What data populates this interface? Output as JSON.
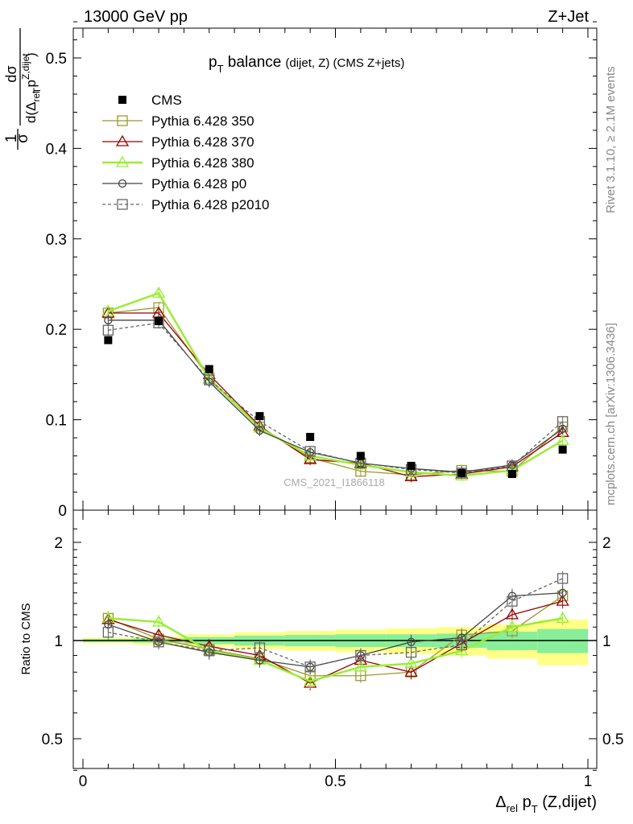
{
  "header": {
    "left": "13000 GeV pp",
    "right": "Z+Jet"
  },
  "side_labels": {
    "rivet": "Rivet 3.1.10, ≥ 2.1M events",
    "mcplots": "mcplots.cern.ch [arXiv:1306.3436]"
  },
  "watermark": "CMS_2021_I1866118",
  "chart_data": [
    {
      "type": "line",
      "title": {
        "main": "p",
        "sub": "T",
        "rest": " balance",
        "small": "(dijet, Z)",
        "tail": " (CMS Z+jets)"
      },
      "ylabel": {
        "lead": "1",
        "sigma": "σ",
        "num": "dσ",
        "den": "d(Δ",
        "den_sub": "rel",
        "den_p": " p",
        "den_sup": "Z,dijet",
        "den_psub": "T",
        "den_close": ")"
      },
      "xlim": [
        0,
        1
      ],
      "ylim": [
        0,
        0.55
      ],
      "yticks": [
        0,
        0.1,
        0.2,
        0.3,
        0.4,
        0.5
      ],
      "ytick_labels": [
        "0",
        "0.1",
        "0.2",
        "0.3",
        "0.4",
        "0.5"
      ],
      "x": [
        0.05,
        0.15,
        0.25,
        0.35,
        0.45,
        0.55,
        0.65,
        0.75,
        0.85,
        0.95
      ],
      "legend_position": "top-left",
      "series": [
        {
          "name": "CMS",
          "color": "#000000",
          "marker": "filled-square",
          "values": [
            0.188,
            0.209,
            0.156,
            0.104,
            0.081,
            0.06,
            0.049,
            0.041,
            0.04,
            0.067
          ]
        },
        {
          "name": "Pythia 6.428 350",
          "color": "#999933",
          "marker": "open-square",
          "values": [
            0.218,
            0.224,
            0.146,
            0.092,
            0.058,
            0.043,
            0.039,
            0.044,
            0.043,
            0.092
          ]
        },
        {
          "name": "Pythia 6.428 370",
          "color": "#990000",
          "marker": "open-triangle",
          "values": [
            0.218,
            0.218,
            0.15,
            0.093,
            0.056,
            0.052,
            0.037,
            0.04,
            0.048,
            0.086
          ]
        },
        {
          "name": "Pythia 6.428 380",
          "color": "#99ee33",
          "marker": "open-triangle",
          "values": [
            0.22,
            0.24,
            0.145,
            0.091,
            0.06,
            0.05,
            0.042,
            0.038,
            0.044,
            0.077
          ]
        },
        {
          "name": "Pythia 6.428 p0",
          "color": "#444444",
          "marker": "open-circle",
          "values": [
            0.21,
            0.21,
            0.142,
            0.088,
            0.064,
            0.052,
            0.046,
            0.042,
            0.05,
            0.09
          ]
        },
        {
          "name": "Pythia 6.428 p2010",
          "color": "#666666",
          "marker": "open-square",
          "dashed": true,
          "values": [
            0.199,
            0.207,
            0.144,
            0.098,
            0.065,
            0.052,
            0.045,
            0.041,
            0.049,
            0.098
          ]
        }
      ]
    },
    {
      "type": "line",
      "ylabel": "Ratio to CMS",
      "xlabel": {
        "delta": "Δ",
        "sub": "rel",
        "p": " p",
        "psub": "T",
        "rest": " (Z,dijet)"
      },
      "xlim": [
        0,
        1
      ],
      "ylim": [
        0.35,
        2.3
      ],
      "yticks": [
        0.5,
        1,
        2
      ],
      "ytick_labels": [
        "0.5",
        "1",
        "2"
      ],
      "xticks": [
        0,
        0.5,
        1
      ],
      "xtick_labels": [
        "0",
        "0.5",
        "1"
      ],
      "x": [
        0.05,
        0.15,
        0.25,
        0.35,
        0.45,
        0.55,
        0.65,
        0.75,
        0.85,
        0.95
      ],
      "bins": [
        0,
        0.1,
        0.2,
        0.3,
        0.4,
        0.5,
        0.6,
        0.7,
        0.8,
        0.9,
        1.0
      ],
      "band_stat": [
        0.01,
        0.015,
        0.025,
        0.035,
        0.04,
        0.045,
        0.045,
        0.05,
        0.065,
        0.085
      ],
      "band_total": [
        0.02,
        0.03,
        0.045,
        0.06,
        0.07,
        0.08,
        0.09,
        0.1,
        0.12,
        0.16
      ],
      "series": [
        {
          "name": "Pythia 6.428 350",
          "color": "#999933",
          "marker": "open-square",
          "values": [
            1.17,
            1.01,
            0.94,
            0.88,
            0.78,
            0.78,
            0.8,
            1.04,
            1.07,
            1.37
          ]
        },
        {
          "name": "Pythia 6.428 370",
          "color": "#990000",
          "marker": "open-triangle",
          "values": [
            1.16,
            1.04,
            0.96,
            0.9,
            0.74,
            0.87,
            0.8,
            0.98,
            1.2,
            1.32
          ]
        },
        {
          "name": "Pythia 6.428 380",
          "color": "#99ee33",
          "marker": "open-triangle",
          "values": [
            1.17,
            1.14,
            0.93,
            0.87,
            0.75,
            0.83,
            0.85,
            0.93,
            1.1,
            1.17
          ]
        },
        {
          "name": "Pythia 6.428 p0",
          "color": "#444444",
          "marker": "open-circle",
          "values": [
            1.12,
            0.99,
            0.92,
            0.87,
            0.83,
            0.9,
            0.99,
            1.02,
            1.37,
            1.4
          ]
        },
        {
          "name": "Pythia 6.428 p2010",
          "color": "#666666",
          "marker": "open-square",
          "dashed": true,
          "values": [
            1.06,
            0.99,
            0.93,
            0.95,
            0.83,
            0.9,
            0.92,
            0.97,
            1.32,
            1.55
          ]
        }
      ]
    }
  ]
}
